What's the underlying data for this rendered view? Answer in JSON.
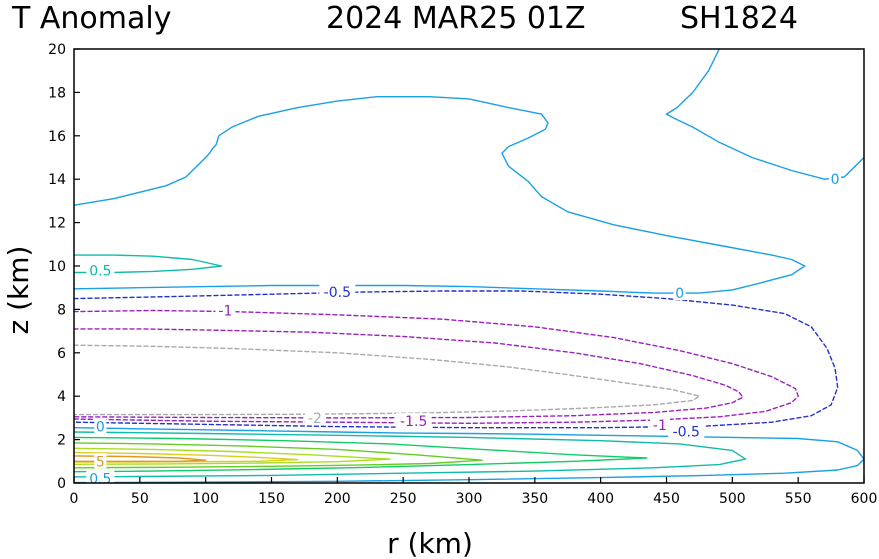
{
  "chart_data": {
    "type": "contour",
    "title": "T Anomaly",
    "timestamp": "2024 MAR25 01Z",
    "storm_id": "SH1824",
    "xlabel": "r (km)",
    "ylabel": "z (km)",
    "xlim": [
      0,
      600
    ],
    "ylim": [
      0,
      20
    ],
    "xticks": [
      "0",
      "50",
      "100",
      "150",
      "200",
      "250",
      "300",
      "350",
      "400",
      "450",
      "500",
      "550",
      "600"
    ],
    "yticks": [
      "0",
      "2",
      "4",
      "6",
      "8",
      "10",
      "12",
      "14",
      "16",
      "18",
      "20"
    ],
    "grid": false,
    "colors": {
      "zero": "#1aa0e6",
      "neg_half": "#2233cc",
      "neg_one": "#9922bb",
      "neg_one_half": "#9922bb",
      "neg_two": "#aaaaaa",
      "pos_half": "#11bbaa",
      "pos_one": "#11cc66",
      "pos_two": "#66cc22",
      "pos_three": "#aadd22",
      "pos_four": "#ddcc22",
      "pos_five": "#dd9922"
    },
    "contours": [
      {
        "level": "0",
        "style": "solid",
        "color_key": "zero",
        "points": [
          [
            0,
            12.8
          ],
          [
            30,
            13.1
          ],
          [
            70,
            13.7
          ],
          [
            85,
            14.1
          ],
          [
            100,
            15.0
          ],
          [
            103,
            15.2
          ],
          [
            105,
            15.4
          ],
          [
            108,
            15.6
          ],
          [
            110,
            16.0
          ],
          [
            120,
            16.4
          ],
          [
            140,
            16.9
          ],
          [
            170,
            17.3
          ],
          [
            200,
            17.6
          ],
          [
            230,
            17.8
          ],
          [
            270,
            17.8
          ],
          [
            300,
            17.7
          ],
          [
            330,
            17.3
          ],
          [
            355,
            17.0
          ],
          [
            360,
            16.6
          ],
          [
            358,
            16.3
          ],
          [
            345,
            15.9
          ],
          [
            330,
            15.5
          ],
          [
            325,
            15.2
          ],
          [
            330,
            14.6
          ],
          [
            345,
            13.9
          ],
          [
            355,
            13.2
          ],
          [
            375,
            12.5
          ],
          [
            410,
            11.9
          ],
          [
            450,
            11.4
          ],
          [
            495,
            10.9
          ],
          [
            530,
            10.5
          ],
          [
            545,
            10.3
          ],
          [
            555,
            10.0
          ],
          [
            545,
            9.6
          ],
          [
            520,
            9.2
          ],
          [
            500,
            8.9
          ],
          [
            475,
            8.75
          ],
          [
            440,
            8.75
          ],
          [
            400,
            8.85
          ],
          [
            350,
            8.95
          ],
          [
            300,
            9.05
          ],
          [
            250,
            9.1
          ],
          [
            200,
            9.1
          ],
          [
            150,
            9.1
          ],
          [
            100,
            9.05
          ],
          [
            50,
            9.0
          ],
          [
            0,
            8.95
          ]
        ]
      },
      {
        "level": "0",
        "style": "solid",
        "color_key": "zero",
        "points": [
          [
            490,
            20
          ],
          [
            482,
            19.0
          ],
          [
            470,
            18.0
          ],
          [
            458,
            17.3
          ],
          [
            450,
            17.0
          ],
          [
            456,
            16.8
          ],
          [
            470,
            16.4
          ],
          [
            490,
            15.7
          ],
          [
            515,
            15.0
          ],
          [
            545,
            14.4
          ],
          [
            570,
            14.0
          ],
          [
            585,
            14.1
          ],
          [
            595,
            14.7
          ],
          [
            600,
            15.0
          ]
        ]
      },
      {
        "level": "0",
        "style": "solid",
        "color_key": "zero",
        "points": [
          [
            0,
            2.55
          ],
          [
            50,
            2.5
          ],
          [
            100,
            2.45
          ],
          [
            150,
            2.4
          ],
          [
            200,
            2.35
          ],
          [
            250,
            2.3
          ],
          [
            300,
            2.28
          ],
          [
            350,
            2.25
          ],
          [
            400,
            2.2
          ],
          [
            450,
            2.15
          ],
          [
            500,
            2.1
          ],
          [
            550,
            2.05
          ],
          [
            580,
            1.9
          ],
          [
            595,
            1.5
          ],
          [
            600,
            1.1
          ],
          [
            595,
            0.8
          ],
          [
            580,
            0.6
          ],
          [
            540,
            0.45
          ],
          [
            480,
            0.35
          ],
          [
            400,
            0.25
          ],
          [
            300,
            0.15
          ],
          [
            200,
            0.08
          ],
          [
            100,
            0.04
          ],
          [
            0,
            0.02
          ]
        ]
      },
      {
        "level": "-0.5",
        "style": "dashed",
        "color_key": "neg_half",
        "points": [
          [
            0,
            8.5
          ],
          [
            80,
            8.6
          ],
          [
            150,
            8.7
          ],
          [
            220,
            8.8
          ],
          [
            280,
            8.85
          ],
          [
            340,
            8.85
          ],
          [
            400,
            8.7
          ],
          [
            450,
            8.5
          ],
          [
            500,
            8.2
          ],
          [
            540,
            7.8
          ],
          [
            560,
            7.2
          ],
          [
            572,
            6.2
          ],
          [
            578,
            5.3
          ],
          [
            580,
            4.4
          ],
          [
            575,
            3.6
          ],
          [
            560,
            3.1
          ],
          [
            530,
            2.8
          ],
          [
            480,
            2.62
          ],
          [
            400,
            2.55
          ],
          [
            300,
            2.55
          ],
          [
            200,
            2.6
          ],
          [
            100,
            2.7
          ],
          [
            0,
            2.8
          ]
        ]
      },
      {
        "level": "-1",
        "style": "dashed",
        "color_key": "neg_one",
        "points": [
          [
            0,
            7.9
          ],
          [
            60,
            7.95
          ],
          [
            120,
            7.9
          ],
          [
            200,
            7.75
          ],
          [
            280,
            7.55
          ],
          [
            350,
            7.2
          ],
          [
            410,
            6.7
          ],
          [
            460,
            6.1
          ],
          [
            500,
            5.5
          ],
          [
            530,
            4.9
          ],
          [
            548,
            4.35
          ],
          [
            550,
            4.0
          ],
          [
            545,
            3.7
          ],
          [
            525,
            3.3
          ],
          [
            490,
            3.05
          ],
          [
            440,
            2.9
          ],
          [
            380,
            2.8
          ],
          [
            300,
            2.75
          ],
          [
            200,
            2.8
          ],
          [
            100,
            2.85
          ],
          [
            0,
            2.95
          ]
        ]
      },
      {
        "level": "-1.5",
        "style": "dashed",
        "color_key": "neg_one_half",
        "points": [
          [
            0,
            7.1
          ],
          [
            50,
            7.1
          ],
          [
            100,
            7.05
          ],
          [
            180,
            6.95
          ],
          [
            250,
            6.75
          ],
          [
            320,
            6.45
          ],
          [
            380,
            6.0
          ],
          [
            430,
            5.5
          ],
          [
            470,
            4.95
          ],
          [
            495,
            4.5
          ],
          [
            505,
            4.2
          ],
          [
            508,
            3.95
          ],
          [
            500,
            3.7
          ],
          [
            480,
            3.45
          ],
          [
            440,
            3.25
          ],
          [
            380,
            3.1
          ],
          [
            300,
            3.02
          ],
          [
            200,
            3.0
          ],
          [
            100,
            3.02
          ],
          [
            0,
            3.05
          ]
        ]
      },
      {
        "level": "-2",
        "style": "dashed",
        "color_key": "neg_two",
        "points": [
          [
            0,
            6.35
          ],
          [
            60,
            6.3
          ],
          [
            120,
            6.2
          ],
          [
            200,
            6.0
          ],
          [
            270,
            5.7
          ],
          [
            330,
            5.35
          ],
          [
            380,
            4.95
          ],
          [
            420,
            4.6
          ],
          [
            455,
            4.3
          ],
          [
            475,
            4.0
          ],
          [
            470,
            3.8
          ],
          [
            440,
            3.6
          ],
          [
            390,
            3.45
          ],
          [
            330,
            3.32
          ],
          [
            260,
            3.22
          ],
          [
            180,
            3.17
          ],
          [
            100,
            3.15
          ],
          [
            0,
            3.15
          ]
        ]
      },
      {
        "level": "0.5",
        "style": "solid",
        "color_key": "pos_half",
        "points": [
          [
            0,
            10.5
          ],
          [
            30,
            10.5
          ],
          [
            60,
            10.45
          ],
          [
            90,
            10.3
          ],
          [
            112,
            10.0
          ],
          [
            90,
            9.85
          ],
          [
            60,
            9.75
          ],
          [
            30,
            9.7
          ],
          [
            0,
            9.7
          ]
        ]
      },
      {
        "level": "0.5",
        "style": "solid",
        "color_key": "pos_half",
        "points": [
          [
            0,
            2.35
          ],
          [
            100,
            2.28
          ],
          [
            200,
            2.2
          ],
          [
            300,
            2.1
          ],
          [
            400,
            1.95
          ],
          [
            460,
            1.8
          ],
          [
            500,
            1.5
          ],
          [
            510,
            1.1
          ],
          [
            490,
            0.85
          ],
          [
            440,
            0.7
          ],
          [
            350,
            0.55
          ],
          [
            250,
            0.45
          ],
          [
            150,
            0.35
          ],
          [
            50,
            0.3
          ],
          [
            0,
            0.28
          ]
        ]
      },
      {
        "level": "1",
        "style": "solid",
        "color_key": "pos_one",
        "points": [
          [
            0,
            2.1
          ],
          [
            80,
            2.05
          ],
          [
            160,
            1.95
          ],
          [
            240,
            1.8
          ],
          [
            310,
            1.55
          ],
          [
            380,
            1.3
          ],
          [
            435,
            1.15
          ],
          [
            380,
            1.0
          ],
          [
            300,
            0.85
          ],
          [
            220,
            0.72
          ],
          [
            140,
            0.62
          ],
          [
            60,
            0.55
          ],
          [
            0,
            0.52
          ]
        ]
      },
      {
        "level": "2",
        "style": "solid",
        "color_key": "pos_two",
        "points": [
          [
            0,
            1.85
          ],
          [
            60,
            1.8
          ],
          [
            130,
            1.7
          ],
          [
            200,
            1.55
          ],
          [
            260,
            1.3
          ],
          [
            310,
            1.05
          ],
          [
            270,
            0.9
          ],
          [
            210,
            0.82
          ],
          [
            150,
            0.77
          ],
          [
            80,
            0.73
          ],
          [
            0,
            0.7
          ]
        ]
      },
      {
        "level": "3",
        "style": "solid",
        "color_key": "pos_three",
        "points": [
          [
            0,
            1.6
          ],
          [
            60,
            1.55
          ],
          [
            120,
            1.45
          ],
          [
            180,
            1.3
          ],
          [
            240,
            1.1
          ],
          [
            200,
            0.98
          ],
          [
            140,
            0.92
          ],
          [
            70,
            0.88
          ],
          [
            0,
            0.86
          ]
        ]
      },
      {
        "level": "4",
        "style": "solid",
        "color_key": "pos_four",
        "points": [
          [
            0,
            1.4
          ],
          [
            50,
            1.36
          ],
          [
            100,
            1.28
          ],
          [
            140,
            1.18
          ],
          [
            170,
            1.08
          ],
          [
            140,
            1.0
          ],
          [
            90,
            0.98
          ],
          [
            40,
            0.97
          ],
          [
            0,
            0.97
          ]
        ]
      },
      {
        "level": "5",
        "style": "solid",
        "color_key": "pos_five",
        "points": [
          [
            0,
            1.25
          ],
          [
            40,
            1.22
          ],
          [
            80,
            1.15
          ],
          [
            100,
            1.05
          ],
          [
            80,
            1.0
          ],
          [
            40,
            1.0
          ],
          [
            0,
            1.0
          ]
        ]
      }
    ],
    "contour_labels": [
      {
        "text": "0",
        "x": 578,
        "y": 14.0,
        "color_key": "zero"
      },
      {
        "text": "0",
        "x": 460,
        "y": 8.75,
        "color_key": "zero"
      },
      {
        "text": "0",
        "x": 20,
        "y": 2.6,
        "color_key": "zero"
      },
      {
        "text": "0.5",
        "x": 20,
        "y": 0.2,
        "color_key": "zero"
      },
      {
        "text": "0.5",
        "x": 20,
        "y": 9.8,
        "color_key": "pos_half"
      },
      {
        "text": "-0.5",
        "x": 200,
        "y": 8.8,
        "color_key": "neg_half"
      },
      {
        "text": "-0.5",
        "x": 465,
        "y": 2.37,
        "color_key": "neg_half"
      },
      {
        "text": "-1",
        "x": 115,
        "y": 7.95,
        "color_key": "neg_one"
      },
      {
        "text": "-1",
        "x": 445,
        "y": 2.68,
        "color_key": "neg_one"
      },
      {
        "text": "-1.5",
        "x": 258,
        "y": 2.85,
        "color_key": "neg_one_half"
      },
      {
        "text": "-2",
        "x": 183,
        "y": 3.0,
        "color_key": "neg_two"
      },
      {
        "text": "5",
        "x": 20,
        "y": 1.0,
        "color_key": "pos_five"
      }
    ]
  }
}
